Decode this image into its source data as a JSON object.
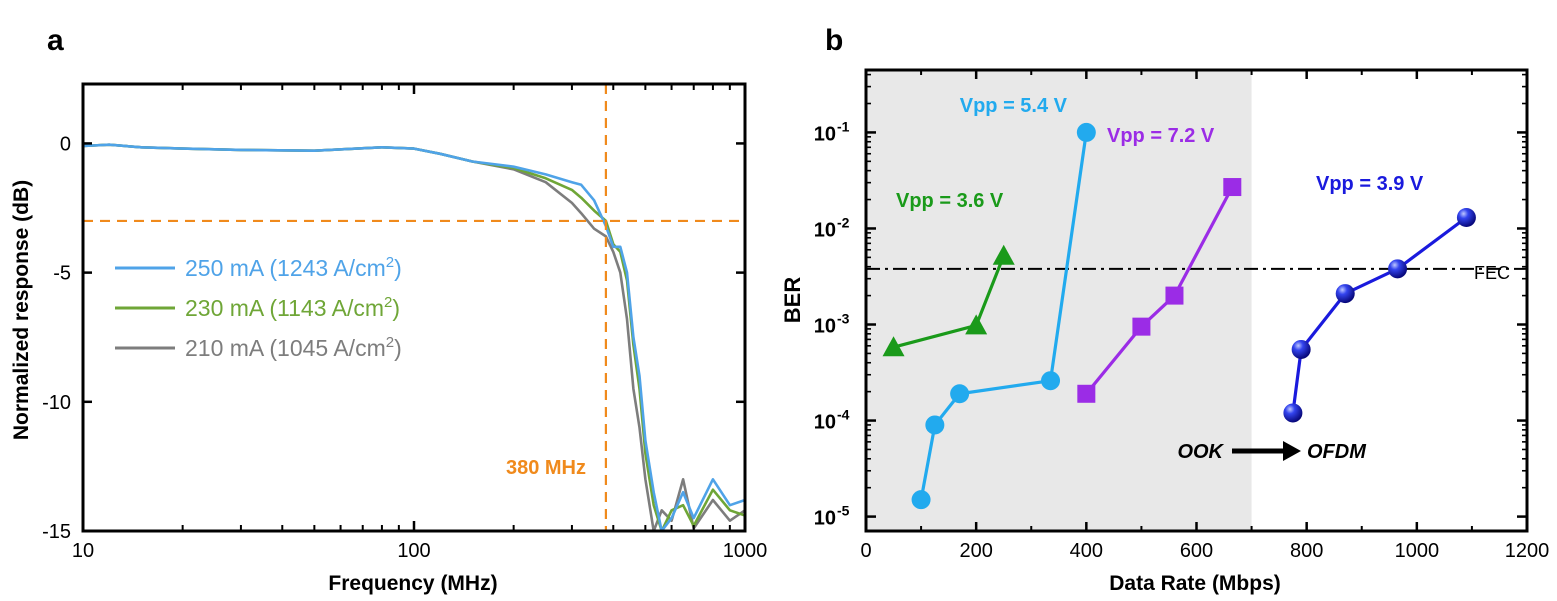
{
  "chart_data": [
    {
      "panel_label": "a",
      "type": "line",
      "xlabel": "Frequency (MHz)",
      "ylabel": "Normalized response (dB)",
      "xscale": "log",
      "xlim": [
        10,
        1000
      ],
      "ylim": [
        -15,
        2.3
      ],
      "xticks": [
        "10",
        "100",
        "1000"
      ],
      "yticks": [
        "0",
        "-5",
        "-10",
        "-15"
      ],
      "legend_position": "center-left",
      "reference_lines": {
        "h_db": -3,
        "v_mhz": 380,
        "color": "#F08A1C"
      },
      "annotation": "380 MHz",
      "series": [
        {
          "name": "250 mA (1243 A/cm",
          "sup": "2",
          "name_end": ")",
          "color": "#4FA3E8",
          "x": [
            10,
            12,
            15,
            20,
            30,
            50,
            80,
            100,
            120,
            150,
            200,
            250,
            300,
            320,
            350,
            380,
            400,
            420,
            440,
            460,
            480,
            500,
            530,
            560,
            600,
            650,
            700,
            800,
            900,
            1000
          ],
          "y": [
            -0.1,
            -0.05,
            -0.15,
            -0.2,
            -0.25,
            -0.28,
            -0.15,
            -0.2,
            -0.4,
            -0.7,
            -0.9,
            -1.2,
            -1.5,
            -1.6,
            -2.2,
            -3.2,
            -4.0,
            -4.0,
            -5.0,
            -7.5,
            -9.0,
            -11.5,
            -13.5,
            -15,
            -14.5,
            -13.5,
            -14.5,
            -13.0,
            -14.0,
            -13.8
          ]
        },
        {
          "name": "230 mA (1143 A/cm",
          "sup": "2",
          "name_end": ")",
          "color": "#6FA637",
          "x": [
            10,
            12,
            15,
            20,
            30,
            50,
            80,
            100,
            120,
            150,
            200,
            250,
            300,
            320,
            350,
            380,
            400,
            420,
            440,
            460,
            480,
            500,
            530,
            560,
            600,
            650,
            700,
            800,
            900,
            1000
          ],
          "y": [
            -0.1,
            -0.05,
            -0.15,
            -0.2,
            -0.25,
            -0.28,
            -0.15,
            -0.2,
            -0.4,
            -0.7,
            -0.95,
            -1.35,
            -1.8,
            -2.1,
            -2.6,
            -3.0,
            -3.9,
            -4.2,
            -5.3,
            -7.8,
            -9.5,
            -12.0,
            -14.0,
            -15,
            -14.2,
            -14.0,
            -14.8,
            -13.4,
            -14.2,
            -14.4
          ]
        },
        {
          "name": "210 mA (1045 A/cm",
          "sup": "2",
          "name_end": ")",
          "color": "#7D7D7D",
          "x": [
            10,
            12,
            15,
            20,
            30,
            50,
            80,
            100,
            120,
            150,
            200,
            250,
            300,
            320,
            350,
            380,
            400,
            420,
            440,
            460,
            480,
            500,
            530,
            560,
            600,
            650,
            700,
            800,
            900,
            1000
          ],
          "y": [
            -0.1,
            -0.05,
            -0.15,
            -0.2,
            -0.25,
            -0.28,
            -0.15,
            -0.2,
            -0.4,
            -0.7,
            -1.0,
            -1.5,
            -2.3,
            -2.7,
            -3.3,
            -3.6,
            -4.2,
            -5.0,
            -6.8,
            -9.5,
            -11.0,
            -13.0,
            -15,
            -14.2,
            -14.6,
            -13.0,
            -14.9,
            -13.8,
            -14.6,
            -14.2
          ]
        }
      ]
    },
    {
      "panel_label": "b",
      "type": "scatter",
      "xlabel": "Data Rate (Mbps)",
      "ylabel": "BER",
      "yscale": "log",
      "xlim": [
        0,
        1200
      ],
      "ylim_exp": [
        -5.15,
        -0.35
      ],
      "xticks": [
        "0",
        "200",
        "400",
        "600",
        "800",
        "1000",
        "1200"
      ],
      "ytick_exponents": [
        "-1",
        "-2",
        "-3",
        "-4",
        "-5"
      ],
      "ytick_base": "10",
      "shaded_region_x": [
        0,
        700
      ],
      "shade_color": "#E8E8E8",
      "fec": {
        "value": 0.0038,
        "label": "FEC"
      },
      "ook_label": "OOK",
      "ofdm_label": "OFDM",
      "series": [
        {
          "name": "Vpp = 3.6 V",
          "marker": "triangle",
          "color": "#1A9A1A",
          "x": [
            50,
            200,
            250
          ],
          "y": [
            0.00058,
            0.00098,
            0.0052
          ]
        },
        {
          "name": "Vpp = 5.4 V",
          "marker": "circle",
          "color": "#22AAEE",
          "x": [
            100,
            125,
            170,
            335,
            400
          ],
          "y": [
            1.5e-05,
            9e-05,
            0.00019,
            0.00026,
            0.1
          ]
        },
        {
          "name": "Vpp = 7.2 V",
          "marker": "square",
          "color": "#9B2CE6",
          "x": [
            400,
            500,
            560,
            665
          ],
          "y": [
            0.00019,
            0.00095,
            0.002,
            0.027
          ]
        },
        {
          "name": "Vpp = 3.9 V",
          "marker": "sphere",
          "color": "#1A1ADD",
          "x": [
            775,
            790,
            870,
            965,
            1090
          ],
          "y": [
            0.00012,
            0.00055,
            0.0021,
            0.0038,
            0.013
          ]
        }
      ]
    }
  ]
}
